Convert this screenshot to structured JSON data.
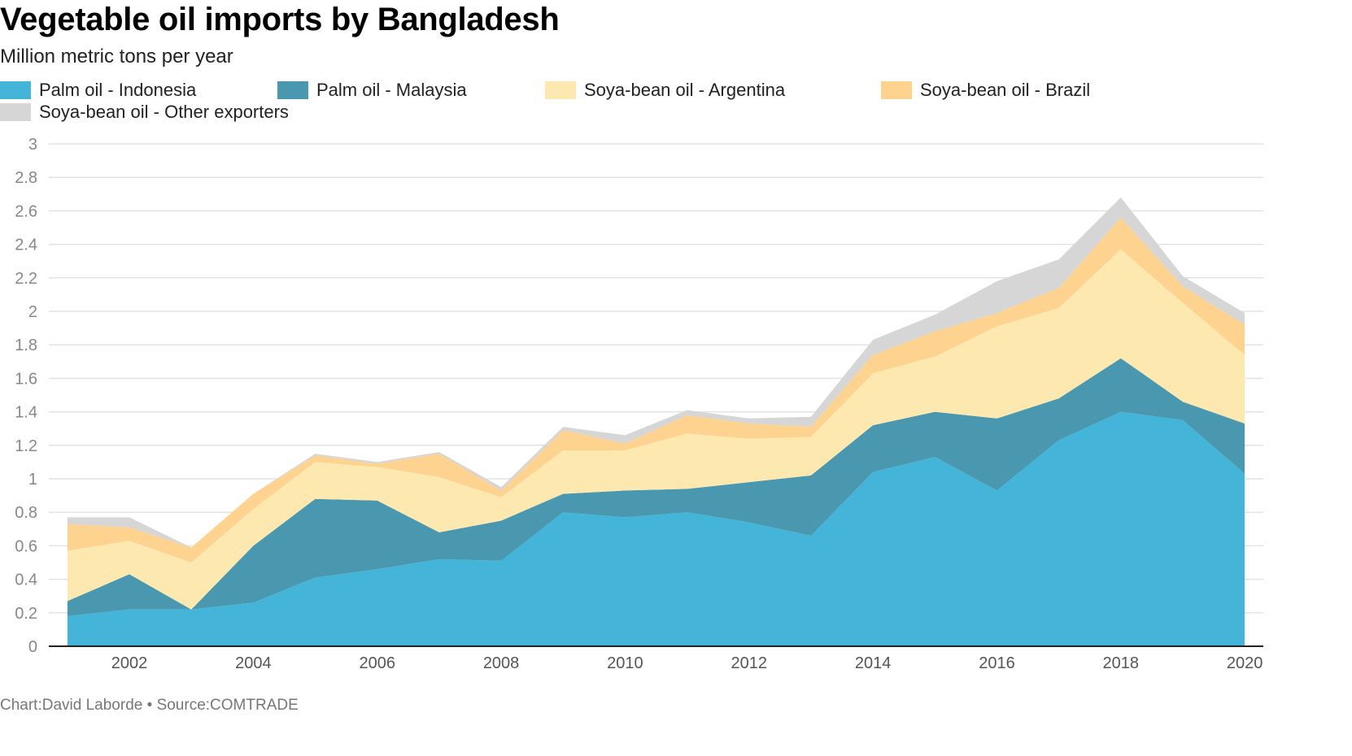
{
  "title": "Vegetable oil imports by Bangladesh",
  "subtitle": "Million metric tons per year",
  "footer": {
    "chart_prefix": "Chart:",
    "author": "David Laborde",
    "separator": " • ",
    "source_prefix": "Source:",
    "source": "COMTRADE"
  },
  "chart_data": {
    "type": "area",
    "stacked": true,
    "x": [
      2001,
      2002,
      2003,
      2004,
      2005,
      2006,
      2007,
      2008,
      2009,
      2010,
      2011,
      2012,
      2013,
      2014,
      2015,
      2016,
      2017,
      2018,
      2019,
      2020
    ],
    "x_ticks": [
      "2002",
      "2004",
      "2006",
      "2008",
      "2010",
      "2012",
      "2014",
      "2016",
      "2018",
      "2020"
    ],
    "y_ticks": [
      "0",
      "0.2",
      "0.4",
      "0.6",
      "0.8",
      "1",
      "1.2",
      "1.4",
      "1.6",
      "1.8",
      "2",
      "2.2",
      "2.4",
      "2.6",
      "2.8",
      "3"
    ],
    "ylim": [
      0,
      3
    ],
    "grid": true,
    "legend_position": "top",
    "series": [
      {
        "name": "Palm oil - Indonesia",
        "color": "#44b4d9",
        "values": [
          0.18,
          0.22,
          0.22,
          0.26,
          0.41,
          0.46,
          0.52,
          0.51,
          0.8,
          0.77,
          0.8,
          0.74,
          0.66,
          1.04,
          1.13,
          0.93,
          1.23,
          1.4,
          1.35,
          1.03
        ]
      },
      {
        "name": "Palm oil - Malaysia",
        "color": "#4a97b0",
        "values": [
          0.09,
          0.21,
          0.0,
          0.34,
          0.47,
          0.41,
          0.16,
          0.24,
          0.11,
          0.16,
          0.14,
          0.24,
          0.36,
          0.28,
          0.27,
          0.43,
          0.25,
          0.32,
          0.11,
          0.3
        ]
      },
      {
        "name": "Soya-bean oil - Argentina",
        "color": "#fde8b0",
        "values": [
          0.3,
          0.2,
          0.28,
          0.22,
          0.22,
          0.2,
          0.33,
          0.14,
          0.26,
          0.24,
          0.33,
          0.26,
          0.23,
          0.31,
          0.33,
          0.55,
          0.54,
          0.65,
          0.59,
          0.41
        ]
      },
      {
        "name": "Soya-bean oil - Brazil",
        "color": "#fdd38f",
        "values": [
          0.16,
          0.08,
          0.09,
          0.09,
          0.04,
          0.02,
          0.14,
          0.04,
          0.12,
          0.04,
          0.11,
          0.09,
          0.06,
          0.11,
          0.15,
          0.08,
          0.12,
          0.19,
          0.1,
          0.18
        ]
      },
      {
        "name": "Soya-bean oil - Other exporters",
        "color": "#d6d6d6",
        "values": [
          0.04,
          0.06,
          0.0,
          0.0,
          0.01,
          0.01,
          0.01,
          0.02,
          0.02,
          0.05,
          0.03,
          0.03,
          0.06,
          0.09,
          0.1,
          0.19,
          0.17,
          0.12,
          0.06,
          0.07
        ]
      }
    ]
  }
}
